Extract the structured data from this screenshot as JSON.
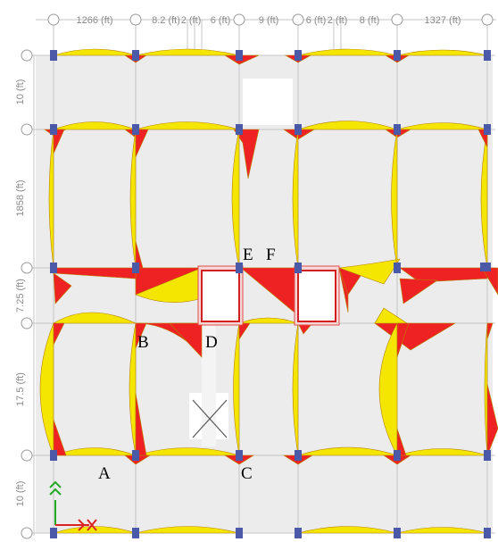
{
  "dimensions": {
    "top": [
      "1266 (ft)",
      "8.2 (ft)",
      "2 (ft)",
      "6 (ft)",
      "9 (ft)",
      "6 (ft)",
      "2 (ft)",
      "8 (ft)",
      "1327 (ft)"
    ],
    "left": [
      "10 (ft)",
      "1858 (ft)",
      "7.25 (ft)",
      "17.5 (ft)",
      "10 (ft)"
    ]
  },
  "point_labels": [
    "A",
    "B",
    "C",
    "D",
    "E",
    "F"
  ],
  "colors": {
    "negative_moment": "#ee2222",
    "positive_moment": "#f4e600",
    "column": "#4a5aa8",
    "panel": "#ececec",
    "grid": "#c4c4c4"
  }
}
